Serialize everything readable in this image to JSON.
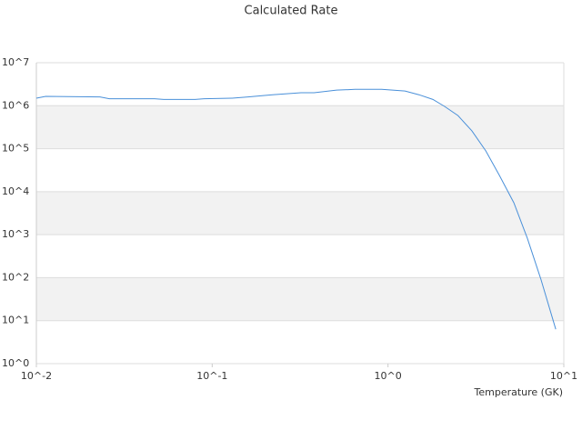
{
  "chart_data": {
    "type": "line",
    "title": "Calculated Rate",
    "x_label": "Temperature (GK)",
    "x_log": true,
    "y_log": true,
    "grid": true,
    "alternate_bands": true,
    "band_color": "#f2f2f2",
    "color": "#4a90d9",
    "xlim": [
      0.01,
      10
    ],
    "ylim": [
      1,
      10000000
    ],
    "xticks": [
      {
        "value": 0.01,
        "label": "10^-2"
      },
      {
        "value": 0.1,
        "label": "10^-1"
      },
      {
        "value": 1,
        "label": "10^0"
      },
      {
        "value": 10,
        "label": "10^1"
      }
    ],
    "yticks": [
      {
        "value": 1,
        "label": "10^0"
      },
      {
        "value": 10,
        "label": "10^1"
      },
      {
        "value": 100,
        "label": "10^2"
      },
      {
        "value": 1000,
        "label": "10^3"
      },
      {
        "value": 10000,
        "label": "10^4"
      },
      {
        "value": 100000,
        "label": "10^5"
      },
      {
        "value": 1000000,
        "label": "10^6"
      },
      {
        "value": 10000000,
        "label": "10^7"
      }
    ],
    "x": [
      0.01,
      0.0113,
      0.023,
      0.026,
      0.047,
      0.053,
      0.08,
      0.09,
      0.13,
      0.16,
      0.22,
      0.32,
      0.38,
      0.51,
      0.65,
      0.92,
      1.25,
      1.5,
      1.8,
      2.1,
      2.5,
      3.0,
      3.6,
      4.3,
      5.2,
      6.2,
      7.4,
      9.0
    ],
    "values": [
      1500000,
      1650000,
      1600000,
      1450000,
      1450000,
      1400000,
      1400000,
      1450000,
      1500000,
      1600000,
      1800000,
      2000000,
      2000000,
      2300000,
      2400000,
      2400000,
      2200000,
      1800000,
      1400000,
      960000,
      590000,
      260000,
      89000,
      24000,
      5500,
      830,
      93,
      6.3
    ]
  }
}
